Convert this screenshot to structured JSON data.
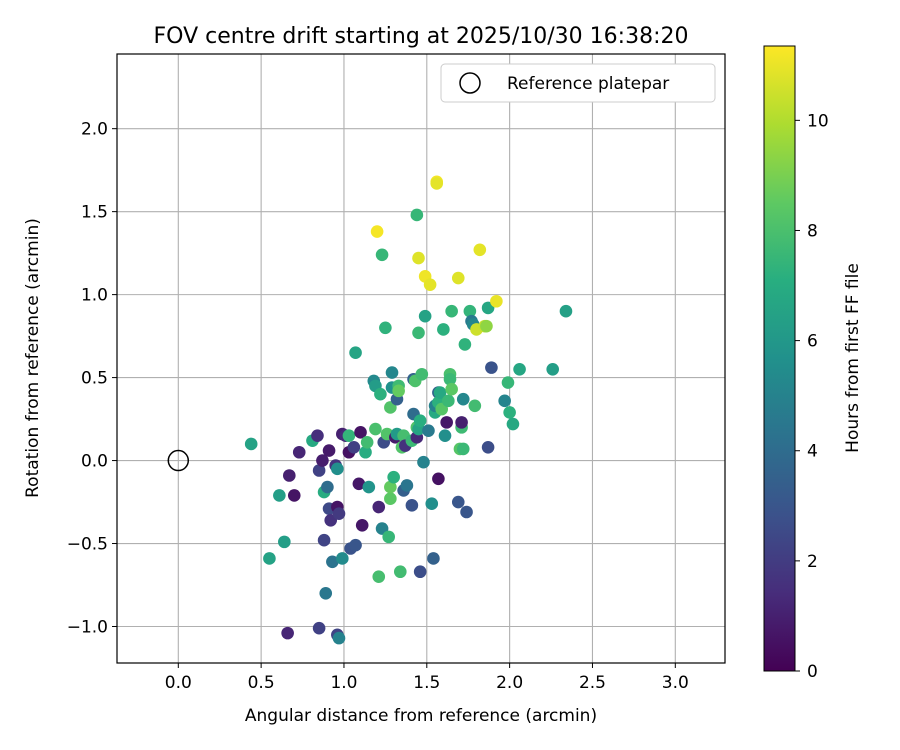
{
  "chart_data": {
    "type": "scatter",
    "title": "FOV centre drift starting at 2025/10/30 16:38:20",
    "xlabel": "Angular distance from reference (arcmin)",
    "ylabel": "Rotation from reference (arcmin)",
    "xlim": [
      -0.37,
      3.3
    ],
    "ylim": [
      -1.22,
      2.45
    ],
    "xticks": [
      0.0,
      0.5,
      1.0,
      1.5,
      2.0,
      2.5,
      3.0
    ],
    "xtick_labels": [
      "0.0",
      "0.5",
      "1.0",
      "1.5",
      "2.0",
      "2.5",
      "3.0"
    ],
    "yticks": [
      -1.0,
      -0.5,
      0.0,
      0.5,
      1.0,
      1.5,
      2.0
    ],
    "ytick_labels": [
      "−1.0",
      "−0.5",
      "0.0",
      "0.5",
      "1.0",
      "1.5",
      "2.0"
    ],
    "grid": true,
    "legend": {
      "position": "top-right",
      "entries": [
        "Reference platepar"
      ]
    },
    "reference_point": {
      "x": 0.0,
      "y": 0.0
    },
    "colorbar": {
      "label": "Hours from first FF file",
      "min": 0,
      "max": 11.35,
      "colormap": "viridis",
      "ticks": [
        0,
        2,
        4,
        6,
        8,
        10
      ],
      "tick_labels": [
        "0",
        "2",
        "4",
        "6",
        "8",
        "10"
      ]
    },
    "points": [
      {
        "x": 0.44,
        "y": 0.1,
        "h": 6.5
      },
      {
        "x": 0.55,
        "y": -0.59,
        "h": 6.5
      },
      {
        "x": 0.61,
        "y": -0.21,
        "h": 6.3
      },
      {
        "x": 0.64,
        "y": -0.49,
        "h": 6.3
      },
      {
        "x": 0.67,
        "y": -0.09,
        "h": 1.0
      },
      {
        "x": 0.7,
        "y": -0.21,
        "h": 0.6
      },
      {
        "x": 0.73,
        "y": 0.05,
        "h": 1.2
      },
      {
        "x": 0.66,
        "y": -1.04,
        "h": 1.2
      },
      {
        "x": 0.81,
        "y": 0.12,
        "h": 6.8
      },
      {
        "x": 0.84,
        "y": 0.15,
        "h": 1.5
      },
      {
        "x": 0.85,
        "y": -0.06,
        "h": 2.2
      },
      {
        "x": 0.87,
        "y": 0.0,
        "h": 0.9
      },
      {
        "x": 0.88,
        "y": -0.48,
        "h": 2.3
      },
      {
        "x": 0.89,
        "y": -0.8,
        "h": 4.5
      },
      {
        "x": 0.88,
        "y": -0.19,
        "h": 7.0
      },
      {
        "x": 0.9,
        "y": -0.16,
        "h": 4.0
      },
      {
        "x": 0.91,
        "y": 0.06,
        "h": 0.8
      },
      {
        "x": 0.91,
        "y": -0.29,
        "h": 2.5
      },
      {
        "x": 0.92,
        "y": -0.36,
        "h": 1.6
      },
      {
        "x": 0.93,
        "y": -0.61,
        "h": 4.3
      },
      {
        "x": 0.85,
        "y": -1.01,
        "h": 2.2
      },
      {
        "x": 0.95,
        "y": -0.03,
        "h": 1.7
      },
      {
        "x": 0.96,
        "y": -0.05,
        "h": 5.6
      },
      {
        "x": 0.96,
        "y": -0.28,
        "h": 0.6
      },
      {
        "x": 0.96,
        "y": -1.05,
        "h": 2.3
      },
      {
        "x": 0.97,
        "y": -0.32,
        "h": 1.9
      },
      {
        "x": 0.97,
        "y": -1.07,
        "h": 5.0
      },
      {
        "x": 0.99,
        "y": -0.59,
        "h": 5.4
      },
      {
        "x": 0.99,
        "y": 0.16,
        "h": 1.0
      },
      {
        "x": 1.01,
        "y": 0.15,
        "h": 1.3
      },
      {
        "x": 1.03,
        "y": 0.05,
        "h": 0.5
      },
      {
        "x": 1.03,
        "y": 0.15,
        "h": 7.4
      },
      {
        "x": 1.04,
        "y": -0.53,
        "h": 2.9
      },
      {
        "x": 1.06,
        "y": 0.08,
        "h": 2.1
      },
      {
        "x": 1.07,
        "y": 0.65,
        "h": 6.6
      },
      {
        "x": 1.07,
        "y": -0.51,
        "h": 3.0
      },
      {
        "x": 1.09,
        "y": -0.14,
        "h": 0.7
      },
      {
        "x": 1.1,
        "y": 0.17,
        "h": 0.6
      },
      {
        "x": 1.11,
        "y": -0.39,
        "h": 0.7
      },
      {
        "x": 1.13,
        "y": 0.05,
        "h": 7.0
      },
      {
        "x": 1.14,
        "y": 0.11,
        "h": 7.8
      },
      {
        "x": 1.15,
        "y": -0.16,
        "h": 5.8
      },
      {
        "x": 1.18,
        "y": 0.48,
        "h": 5.3
      },
      {
        "x": 1.19,
        "y": 0.45,
        "h": 6.2
      },
      {
        "x": 1.19,
        "y": 0.19,
        "h": 8.0
      },
      {
        "x": 1.2,
        "y": 1.38,
        "h": 11.2
      },
      {
        "x": 1.21,
        "y": -0.7,
        "h": 7.9
      },
      {
        "x": 1.21,
        "y": -0.28,
        "h": 1.2
      },
      {
        "x": 1.22,
        "y": 0.4,
        "h": 7.2
      },
      {
        "x": 1.23,
        "y": 1.24,
        "h": 7.5
      },
      {
        "x": 1.23,
        "y": -0.41,
        "h": 5.0
      },
      {
        "x": 1.24,
        "y": 0.11,
        "h": 2.6
      },
      {
        "x": 1.25,
        "y": 0.8,
        "h": 7.3
      },
      {
        "x": 1.26,
        "y": 0.16,
        "h": 8.2
      },
      {
        "x": 1.27,
        "y": -0.46,
        "h": 7.5
      },
      {
        "x": 1.28,
        "y": -0.23,
        "h": 8.4
      },
      {
        "x": 1.28,
        "y": 0.32,
        "h": 8.2
      },
      {
        "x": 1.28,
        "y": -0.16,
        "h": 8.6
      },
      {
        "x": 1.29,
        "y": 0.53,
        "h": 5.2
      },
      {
        "x": 1.29,
        "y": 0.44,
        "h": 5.7
      },
      {
        "x": 1.3,
        "y": -0.1,
        "h": 7.2
      },
      {
        "x": 1.31,
        "y": 0.14,
        "h": 0.8
      },
      {
        "x": 1.32,
        "y": 0.16,
        "h": 6.1
      },
      {
        "x": 1.32,
        "y": 0.37,
        "h": 3.5
      },
      {
        "x": 1.33,
        "y": 0.45,
        "h": 7.7
      },
      {
        "x": 1.33,
        "y": 0.42,
        "h": 8.6
      },
      {
        "x": 1.34,
        "y": -0.67,
        "h": 7.8
      },
      {
        "x": 1.35,
        "y": 0.08,
        "h": 8.2
      },
      {
        "x": 1.36,
        "y": 0.15,
        "h": 7.9
      },
      {
        "x": 1.36,
        "y": -0.18,
        "h": 3.4
      },
      {
        "x": 1.37,
        "y": 0.09,
        "h": 1.6
      },
      {
        "x": 1.38,
        "y": -0.15,
        "h": 4.4
      },
      {
        "x": 1.41,
        "y": 0.12,
        "h": 7.6
      },
      {
        "x": 1.41,
        "y": -0.27,
        "h": 2.9
      },
      {
        "x": 1.42,
        "y": 0.49,
        "h": 3.6
      },
      {
        "x": 1.42,
        "y": 0.28,
        "h": 4.0
      },
      {
        "x": 1.43,
        "y": 0.48,
        "h": 8.1
      },
      {
        "x": 1.44,
        "y": 0.14,
        "h": 1.3
      },
      {
        "x": 1.44,
        "y": 1.48,
        "h": 7.5
      },
      {
        "x": 1.44,
        "y": 0.2,
        "h": 8.2
      },
      {
        "x": 1.45,
        "y": 0.19,
        "h": 6.6
      },
      {
        "x": 1.45,
        "y": 1.22,
        "h": 10.8
      },
      {
        "x": 1.45,
        "y": 0.77,
        "h": 7.6
      },
      {
        "x": 1.46,
        "y": -0.67,
        "h": 2.7
      },
      {
        "x": 1.46,
        "y": 0.24,
        "h": 7.1
      },
      {
        "x": 1.47,
        "y": 0.52,
        "h": 7.8
      },
      {
        "x": 1.48,
        "y": -0.01,
        "h": 5.0
      },
      {
        "x": 1.49,
        "y": 0.87,
        "h": 6.5
      },
      {
        "x": 1.49,
        "y": 1.11,
        "h": 11.1
      },
      {
        "x": 1.51,
        "y": 0.18,
        "h": 4.6
      },
      {
        "x": 1.52,
        "y": 1.06,
        "h": 10.9
      },
      {
        "x": 1.53,
        "y": -0.26,
        "h": 5.6
      },
      {
        "x": 1.54,
        "y": -0.59,
        "h": 3.5
      },
      {
        "x": 1.55,
        "y": 0.29,
        "h": 6.9
      },
      {
        "x": 1.55,
        "y": 0.33,
        "h": 5.0
      },
      {
        "x": 1.56,
        "y": 1.68,
        "h": 11.2
      },
      {
        "x": 1.56,
        "y": 1.67,
        "h": 10.9
      },
      {
        "x": 1.57,
        "y": 0.41,
        "h": 3.6
      },
      {
        "x": 1.57,
        "y": 0.35,
        "h": 7.2
      },
      {
        "x": 1.57,
        "y": -0.11,
        "h": 0.5
      },
      {
        "x": 1.58,
        "y": 0.41,
        "h": 6.8
      },
      {
        "x": 1.59,
        "y": 0.31,
        "h": 8.3
      },
      {
        "x": 1.6,
        "y": 0.79,
        "h": 7.2
      },
      {
        "x": 1.61,
        "y": 0.15,
        "h": 5.6
      },
      {
        "x": 1.62,
        "y": 0.23,
        "h": 0.7
      },
      {
        "x": 1.63,
        "y": 0.36,
        "h": 7.6
      },
      {
        "x": 1.64,
        "y": 0.52,
        "h": 8.0
      },
      {
        "x": 1.64,
        "y": 0.49,
        "h": 7.6
      },
      {
        "x": 1.65,
        "y": 0.9,
        "h": 7.5
      },
      {
        "x": 1.65,
        "y": 0.43,
        "h": 8.4
      },
      {
        "x": 1.69,
        "y": -0.25,
        "h": 3.0
      },
      {
        "x": 1.69,
        "y": 1.1,
        "h": 10.8
      },
      {
        "x": 1.7,
        "y": 0.07,
        "h": 8.3
      },
      {
        "x": 1.71,
        "y": 0.2,
        "h": 7.7
      },
      {
        "x": 1.71,
        "y": 0.23,
        "h": 1.0
      },
      {
        "x": 1.72,
        "y": 0.07,
        "h": 7.6
      },
      {
        "x": 1.72,
        "y": 0.37,
        "h": 5.2
      },
      {
        "x": 1.73,
        "y": 0.7,
        "h": 7.3
      },
      {
        "x": 1.74,
        "y": -0.31,
        "h": 3.0
      },
      {
        "x": 1.76,
        "y": 0.9,
        "h": 7.4
      },
      {
        "x": 1.77,
        "y": 0.84,
        "h": 4.6
      },
      {
        "x": 1.78,
        "y": 0.82,
        "h": 5.2
      },
      {
        "x": 1.79,
        "y": 0.33,
        "h": 7.8
      },
      {
        "x": 1.8,
        "y": 0.79,
        "h": 10.5
      },
      {
        "x": 1.82,
        "y": 1.27,
        "h": 10.9
      },
      {
        "x": 1.85,
        "y": 0.81,
        "h": 10.4
      },
      {
        "x": 1.86,
        "y": 0.81,
        "h": 9.4
      },
      {
        "x": 1.87,
        "y": 0.92,
        "h": 6.7
      },
      {
        "x": 1.87,
        "y": 0.08,
        "h": 2.7
      },
      {
        "x": 1.89,
        "y": 0.56,
        "h": 2.9
      },
      {
        "x": 1.92,
        "y": 0.96,
        "h": 11.0
      },
      {
        "x": 1.97,
        "y": 0.36,
        "h": 5.1
      },
      {
        "x": 1.99,
        "y": 0.47,
        "h": 7.5
      },
      {
        "x": 2.0,
        "y": 0.29,
        "h": 7.2
      },
      {
        "x": 2.02,
        "y": 0.22,
        "h": 6.8
      },
      {
        "x": 2.06,
        "y": 0.55,
        "h": 6.7
      },
      {
        "x": 2.26,
        "y": 0.55,
        "h": 6.3
      },
      {
        "x": 2.34,
        "y": 0.9,
        "h": 6.4
      }
    ]
  }
}
